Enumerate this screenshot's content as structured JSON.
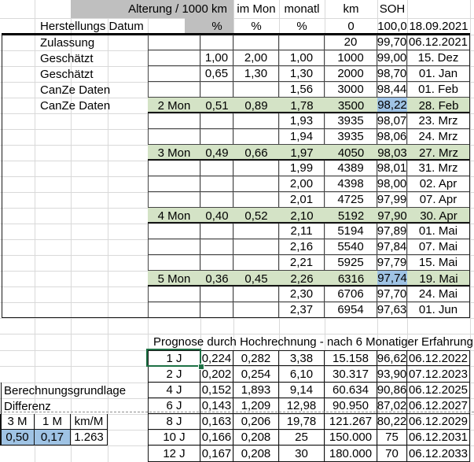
{
  "header": {
    "alterung": "Alterung  / 1000 km",
    "im_mon": "im Mon",
    "monatl": "monatl",
    "km": "km",
    "soh": "SOH"
  },
  "subheader": {
    "label": "Herstellungs Datum",
    "pct_cells": [
      "%",
      "%",
      "%"
    ],
    "km": "0",
    "soh": "100,0",
    "date": "18.09.2021"
  },
  "main_rows": [
    {
      "label": "Zulassung",
      "mon": "",
      "alt": "",
      "immon": "",
      "monatl": "",
      "km": "20",
      "soh": "99,70",
      "date": "06.12.2021",
      "green": false,
      "soh_blue": false
    },
    {
      "label": "Geschätzt",
      "mon": "",
      "alt": "1,00",
      "immon": "2,00",
      "monatl": "1,00",
      "km": "1000",
      "soh": "99,00",
      "date": "15. Dez",
      "green": false,
      "soh_blue": false
    },
    {
      "label": "Geschätzt",
      "mon": "",
      "alt": "0,65",
      "immon": "1,30",
      "monatl": "1,30",
      "km": "2000",
      "soh": "98,70",
      "date": "01. Jan",
      "green": false,
      "soh_blue": false
    },
    {
      "label": "CanZe Daten",
      "mon": "",
      "alt": "",
      "immon": "",
      "monatl": "1,56",
      "km": "3000",
      "soh": "98,44",
      "date": "01. Feb",
      "green": false,
      "soh_blue": false
    },
    {
      "label": "CanZe Daten",
      "mon": "2 Mon",
      "alt": "0,51",
      "immon": "0,89",
      "monatl": "1,78",
      "km": "3500",
      "soh": "98,22",
      "date": "28. Feb",
      "green": true,
      "soh_blue": true
    },
    {
      "label": "",
      "mon": "",
      "alt": "",
      "immon": "",
      "monatl": "1,93",
      "km": "3935",
      "soh": "98,07",
      "date": "23. Mrz",
      "green": false,
      "soh_blue": false
    },
    {
      "label": "",
      "mon": "",
      "alt": "",
      "immon": "",
      "monatl": "1,94",
      "km": "3935",
      "soh": "98,06",
      "date": "24. Mrz",
      "green": false,
      "soh_blue": false
    },
    {
      "label": "",
      "mon": "3 Mon",
      "alt": "0,49",
      "immon": "0,66",
      "monatl": "1,97",
      "km": "4050",
      "soh": "98,03",
      "date": "27. Mrz",
      "green": true,
      "soh_blue": false
    },
    {
      "label": "",
      "mon": "",
      "alt": "",
      "immon": "",
      "monatl": "1,99",
      "km": "4389",
      "soh": "98,01",
      "date": "31. Mrz",
      "green": false,
      "soh_blue": false
    },
    {
      "label": "",
      "mon": "",
      "alt": "",
      "immon": "",
      "monatl": "2,00",
      "km": "4398",
      "soh": "98,00",
      "date": "02. Apr",
      "green": false,
      "soh_blue": false
    },
    {
      "label": "",
      "mon": "",
      "alt": "",
      "immon": "",
      "monatl": "2,01",
      "km": "4725",
      "soh": "97,99",
      "date": "07. Apr",
      "green": false,
      "soh_blue": false
    },
    {
      "label": "",
      "mon": "4 Mon",
      "alt": "0,40",
      "immon": "0,52",
      "monatl": "2,10",
      "km": "5192",
      "soh": "97,90",
      "date": "30. Apr",
      "green": true,
      "soh_blue": false
    },
    {
      "label": "",
      "mon": "",
      "alt": "",
      "immon": "",
      "monatl": "2,11",
      "km": "5194",
      "soh": "97,89",
      "date": "01. Mai",
      "green": false,
      "soh_blue": false
    },
    {
      "label": "",
      "mon": "",
      "alt": "",
      "immon": "",
      "monatl": "2,16",
      "km": "5540",
      "soh": "97,84",
      "date": "07. Mai",
      "green": false,
      "soh_blue": false
    },
    {
      "label": "",
      "mon": "",
      "alt": "",
      "immon": "",
      "monatl": "2,21",
      "km": "5925",
      "soh": "97,79",
      "date": "15. Mai",
      "green": false,
      "soh_blue": false
    },
    {
      "label": "",
      "mon": "5 Mon",
      "alt": "0,36",
      "immon": "0,45",
      "monatl": "2,26",
      "km": "6316",
      "soh": "97,74",
      "date": "19. Mai",
      "green": true,
      "soh_blue": true
    },
    {
      "label": "",
      "mon": "",
      "alt": "",
      "immon": "",
      "monatl": "2,30",
      "km": "6706",
      "soh": "97,70",
      "date": "24. Mai",
      "green": false,
      "soh_blue": false
    },
    {
      "label": "",
      "mon": "",
      "alt": "",
      "immon": "",
      "monatl": "2,37",
      "km": "6954",
      "soh": "97,63",
      "date": "01. Jun",
      "green": false,
      "soh_blue": false
    }
  ],
  "prognose": {
    "title": "Prognose durch Hochrechnung - nach 6 Monatiger Erfahrung",
    "selected_cell": "1 J",
    "rows": [
      {
        "years": "1 J",
        "alt": "0,224",
        "immon": "0,282",
        "monatl": "3,38",
        "km": "15.158",
        "soh": "96,62",
        "date": "06.12.2022"
      },
      {
        "years": "2 J",
        "alt": "0,202",
        "immon": "0,254",
        "monatl": "6,10",
        "km": "30.317",
        "soh": "93,90",
        "date": "07.12.2023"
      },
      {
        "years": "4 J",
        "alt": "0,152",
        "immon": "1,893",
        "monatl": "9,14",
        "km": "60.634",
        "soh": "90,86",
        "date": "06.12.2025"
      },
      {
        "years": "6 J",
        "alt": "0,143",
        "immon": "1,209",
        "monatl": "12,98",
        "km": "90.950",
        "soh": "87,02",
        "date": "06.12.2027"
      },
      {
        "years": "8 J",
        "alt": "0,163",
        "immon": "0,206",
        "monatl": "19,78",
        "km": "121.267",
        "soh": "80,22",
        "date": "06.12.2029"
      },
      {
        "years": "10 J",
        "alt": "0,166",
        "immon": "0,208",
        "monatl": "25",
        "km": "150.000",
        "soh": "75",
        "date": "06.12.2031"
      },
      {
        "years": "12 J",
        "alt": "0,167",
        "immon": "0,208",
        "monatl": "30",
        "km": "180.000",
        "soh": "70",
        "date": "06.12.2033"
      }
    ]
  },
  "footer": {
    "calc_label": "Berechnungsgrundlage",
    "diff_label": "Differenz",
    "mini_headers": [
      "3 M",
      "1 M",
      "km/M"
    ],
    "mini_values": [
      "0,50",
      "0,17",
      "1.263"
    ]
  },
  "colors": {
    "green_row": "#d4e3c6",
    "blue_cell": "#9fc3e4",
    "gray_header": "#bfbfbf",
    "selection_green": "#1e7145"
  }
}
